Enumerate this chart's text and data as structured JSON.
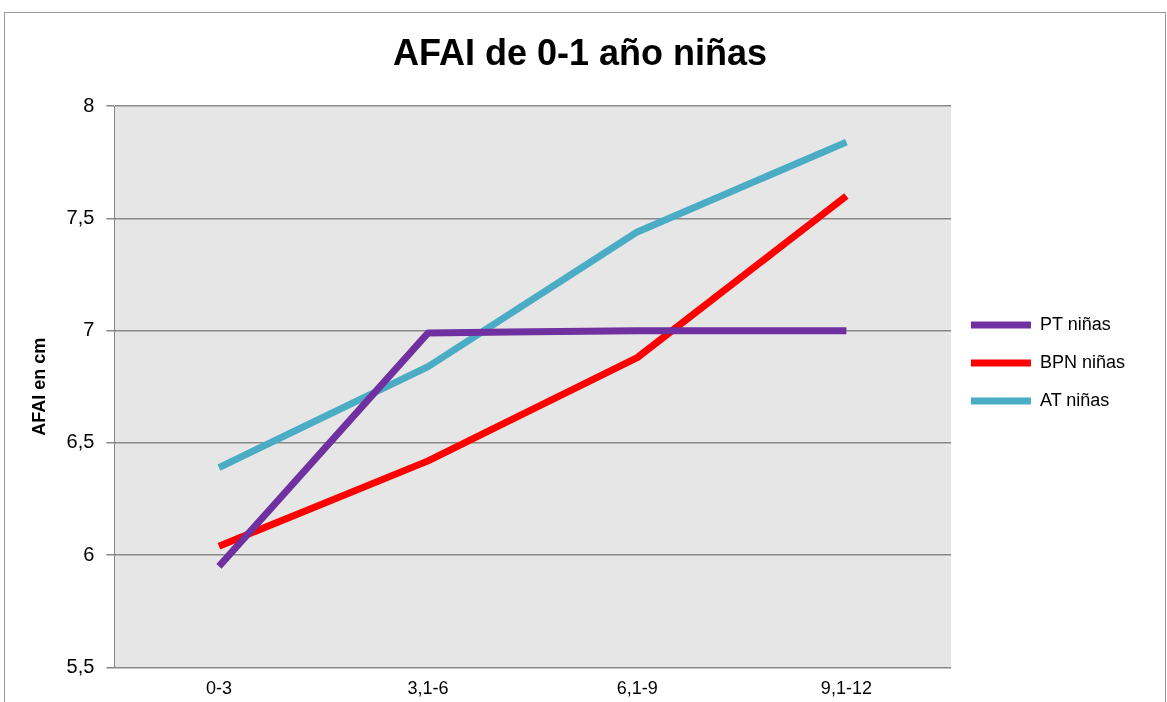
{
  "chart_data": {
    "type": "line",
    "title": "AFAI de 0-1 año niñas",
    "ylabel": "AFAI en cm",
    "categories": [
      "0-3",
      "3,1-6",
      "6,1-9",
      "9,1-12"
    ],
    "series": [
      {
        "name": "PT niñas",
        "color": "#7030a0",
        "values": [
          5.95,
          6.99,
          7.0,
          7.0
        ]
      },
      {
        "name": "BPN niñas",
        "color": "#ff0000",
        "values": [
          6.04,
          6.42,
          6.88,
          7.6
        ]
      },
      {
        "name": "AT niñas",
        "color": "#4bacc6",
        "values": [
          6.39,
          6.84,
          7.44,
          7.84
        ]
      }
    ],
    "ylim": [
      5.5,
      8
    ],
    "yticks": [
      {
        "value": 5.5,
        "label": "5,5"
      },
      6,
      {
        "value": 6.5,
        "label": "6,5"
      },
      7,
      {
        "value": 7.5,
        "label": "7,5"
      },
      8
    ],
    "grid": "y",
    "legend": "right",
    "marker": "none",
    "line_style": "solid"
  }
}
